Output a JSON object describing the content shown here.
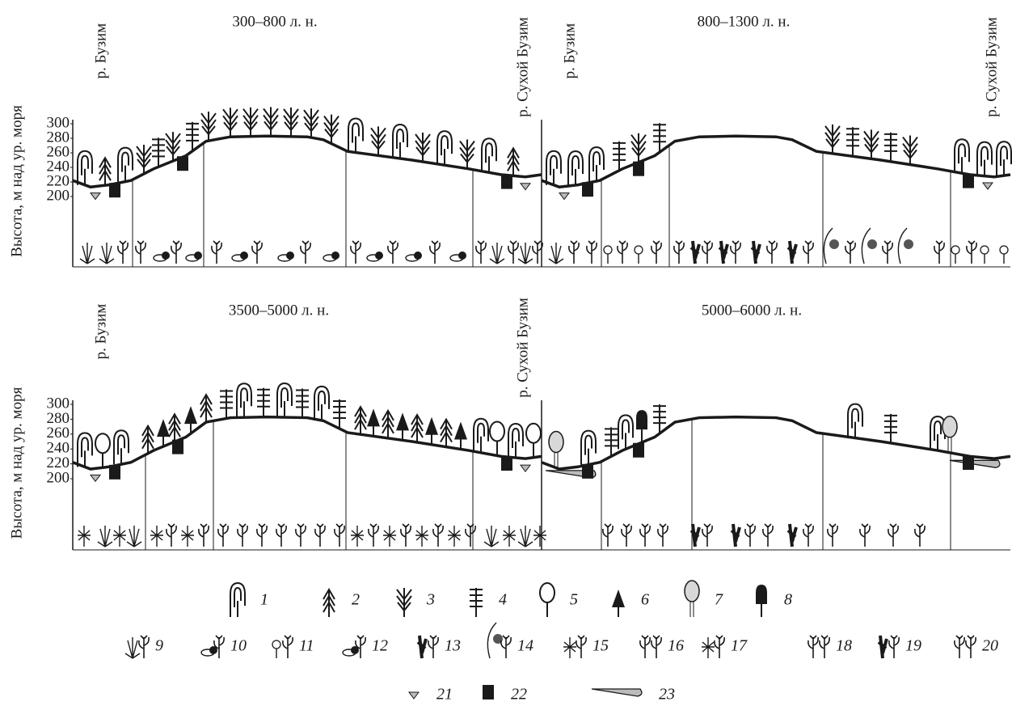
{
  "panels": [
    {
      "title": "300–800 л. н.",
      "river_left": "р. Бузим",
      "river_right": "р. Сухой Бузим"
    },
    {
      "title": "800–1300 л. н.",
      "river_left": "р. Бузим",
      "river_right": "р. Сухой Бузим"
    },
    {
      "title": "3500–5000 л. н.",
      "river_left": "р. Бузим",
      "river_right": "р. Сухой Бузим"
    },
    {
      "title": "5000–6000 л. н.",
      "river_left": "",
      "river_right": ""
    }
  ],
  "axis": {
    "label": "Высота, м над ур. моря",
    "ticks": [
      200,
      220,
      240,
      260,
      280,
      300
    ]
  },
  "legend": {
    "items": [
      "1",
      "2",
      "3",
      "4",
      "5",
      "6",
      "7",
      "8",
      "9",
      "10",
      "11",
      "12",
      "13",
      "14",
      "15",
      "16",
      "17",
      "18",
      "19",
      "20",
      "21",
      "22",
      "23"
    ]
  }
}
